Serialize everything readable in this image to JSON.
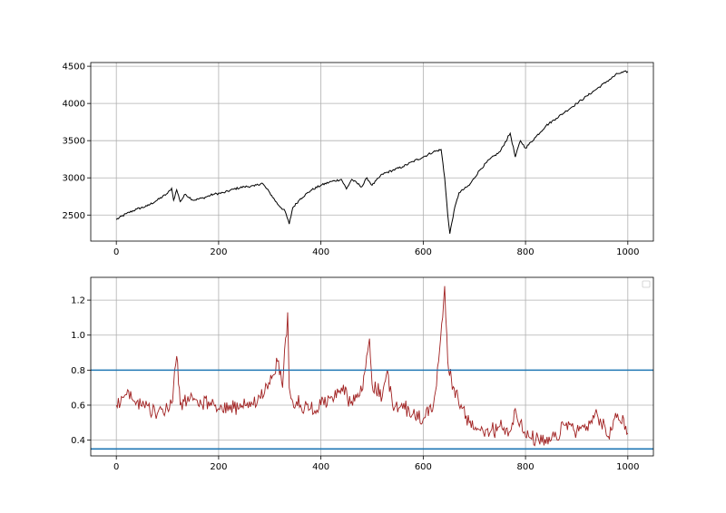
{
  "chart_data": [
    {
      "type": "line",
      "title": "",
      "xlabel": "",
      "ylabel": "",
      "xlim": [
        -50,
        1050
      ],
      "ylim": [
        2150,
        4550
      ],
      "grid": true,
      "x_ticks": [
        0,
        200,
        400,
        600,
        800,
        1000
      ],
      "x_tick_labels": [
        "0",
        "200",
        "400",
        "600",
        "800",
        "1000"
      ],
      "y_ticks": [
        2500,
        3000,
        3500,
        4000,
        4500
      ],
      "y_tick_labels": [
        "2500",
        "3000",
        "3500",
        "4000",
        "4500"
      ],
      "series": [
        {
          "color": "#000000",
          "x": [
            0,
            20,
            40,
            60,
            80,
            100,
            108,
            112,
            118,
            125,
            135,
            150,
            170,
            190,
            210,
            230,
            250,
            270,
            285,
            300,
            315,
            330,
            338,
            345,
            360,
            380,
            400,
            420,
            440,
            450,
            460,
            480,
            490,
            500,
            520,
            540,
            560,
            580,
            600,
            620,
            635,
            642,
            648,
            652,
            660,
            670,
            690,
            710,
            730,
            750,
            770,
            780,
            790,
            800,
            820,
            840,
            860,
            880,
            900,
            920,
            940,
            960,
            980,
            1000
          ],
          "values": [
            2440,
            2520,
            2580,
            2620,
            2700,
            2790,
            2860,
            2700,
            2840,
            2680,
            2780,
            2700,
            2730,
            2780,
            2800,
            2850,
            2880,
            2890,
            2930,
            2800,
            2650,
            2550,
            2380,
            2600,
            2720,
            2830,
            2900,
            2950,
            2980,
            2850,
            2980,
            2880,
            3000,
            2900,
            3050,
            3100,
            3150,
            3220,
            3280,
            3350,
            3380,
            3000,
            2500,
            2250,
            2550,
            2800,
            2900,
            3100,
            3250,
            3350,
            3600,
            3280,
            3500,
            3400,
            3550,
            3700,
            3800,
            3900,
            4000,
            4100,
            4200,
            4300,
            4400,
            4430
          ]
        }
      ]
    },
    {
      "type": "line",
      "title": "",
      "xlabel": "",
      "ylabel": "",
      "xlim": [
        -50,
        1050
      ],
      "ylim": [
        0.31,
        1.33
      ],
      "grid": true,
      "x_ticks": [
        0,
        200,
        400,
        600,
        800,
        1000
      ],
      "x_tick_labels": [
        "0",
        "200",
        "400",
        "600",
        "800",
        "1000"
      ],
      "y_ticks": [
        0.4,
        0.6,
        0.8,
        1.0,
        1.2
      ],
      "y_tick_labels": [
        "0.4",
        "0.6",
        "0.8",
        "1.0",
        "1.2"
      ],
      "legend": "upper-right, empty",
      "hlines": [
        {
          "y": 0.8,
          "color": "#1f77b4"
        },
        {
          "y": 0.35,
          "color": "#1f77b4"
        }
      ],
      "series": [
        {
          "color": "#a02020",
          "x": [
            0,
            20,
            40,
            60,
            80,
            100,
            110,
            118,
            125,
            140,
            160,
            180,
            200,
            220,
            240,
            260,
            280,
            300,
            315,
            325,
            335,
            338,
            345,
            360,
            380,
            400,
            420,
            440,
            460,
            480,
            495,
            500,
            520,
            530,
            540,
            560,
            580,
            600,
            620,
            630,
            638,
            642,
            648,
            655,
            670,
            690,
            710,
            730,
            750,
            770,
            780,
            800,
            820,
            840,
            860,
            880,
            900,
            920,
            940,
            960,
            980,
            1000
          ],
          "values": [
            0.6,
            0.66,
            0.62,
            0.6,
            0.55,
            0.58,
            0.62,
            0.88,
            0.6,
            0.65,
            0.6,
            0.62,
            0.58,
            0.6,
            0.58,
            0.62,
            0.65,
            0.72,
            0.85,
            0.7,
            1.13,
            0.7,
            0.62,
            0.6,
            0.58,
            0.6,
            0.65,
            0.7,
            0.62,
            0.68,
            0.98,
            0.72,
            0.65,
            0.8,
            0.6,
            0.58,
            0.55,
            0.52,
            0.6,
            0.85,
            1.1,
            1.28,
            0.85,
            0.75,
            0.6,
            0.5,
            0.46,
            0.44,
            0.48,
            0.45,
            0.58,
            0.42,
            0.4,
            0.38,
            0.42,
            0.5,
            0.45,
            0.48,
            0.55,
            0.42,
            0.55,
            0.44
          ]
        }
      ]
    }
  ]
}
